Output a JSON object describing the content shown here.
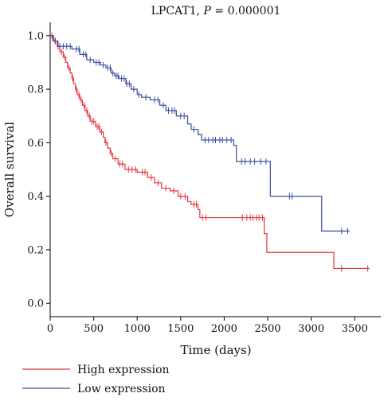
{
  "chart_data": {
    "type": "line",
    "title_prefix": "LPCAT1, ",
    "title_p": "P",
    "title_suffix": " = 0.000001",
    "xlabel": "Time (days)",
    "ylabel": "Overall survival",
    "xlim": [
      0,
      3800
    ],
    "ylim": [
      -0.05,
      1.05
    ],
    "x_ticks": [
      0,
      500,
      1000,
      1500,
      2000,
      2500,
      3000,
      3500
    ],
    "y_ticks": [
      0.0,
      0.2,
      0.4,
      0.6,
      0.8,
      1.0
    ],
    "y_tick_labels": [
      "0.0",
      "0.2",
      "0.4",
      "0.6",
      "0.8",
      "1.0"
    ],
    "legend_placement": "bottom-left",
    "grid": false,
    "series": [
      {
        "name": "High expression",
        "color": "#e8323c",
        "steps": [
          [
            0,
            1.0
          ],
          [
            40,
            0.98
          ],
          [
            80,
            0.96
          ],
          [
            110,
            0.94
          ],
          [
            150,
            0.92
          ],
          [
            180,
            0.9
          ],
          [
            200,
            0.88
          ],
          [
            230,
            0.86
          ],
          [
            250,
            0.84
          ],
          [
            270,
            0.82
          ],
          [
            290,
            0.8
          ],
          [
            310,
            0.78
          ],
          [
            340,
            0.76
          ],
          [
            370,
            0.74
          ],
          [
            400,
            0.72
          ],
          [
            430,
            0.7
          ],
          [
            460,
            0.68
          ],
          [
            520,
            0.66
          ],
          [
            570,
            0.64
          ],
          [
            610,
            0.62
          ],
          [
            630,
            0.6
          ],
          [
            660,
            0.58
          ],
          [
            690,
            0.56
          ],
          [
            720,
            0.54
          ],
          [
            780,
            0.52
          ],
          [
            860,
            0.5
          ],
          [
            1000,
            0.49
          ],
          [
            1120,
            0.47
          ],
          [
            1200,
            0.45
          ],
          [
            1280,
            0.43
          ],
          [
            1380,
            0.42
          ],
          [
            1470,
            0.4
          ],
          [
            1580,
            0.38
          ],
          [
            1620,
            0.37
          ],
          [
            1700,
            0.35
          ],
          [
            1720,
            0.32
          ],
          [
            2460,
            0.26
          ],
          [
            2490,
            0.19
          ],
          [
            3260,
            0.13
          ]
        ],
        "end_x": 3670,
        "censor_x": [
          20,
          55,
          90,
          130,
          165,
          215,
          260,
          300,
          330,
          355,
          390,
          420,
          450,
          480,
          500,
          540,
          560,
          590,
          640,
          700,
          750,
          800,
          830,
          900,
          940,
          980,
          1060,
          1090,
          1160,
          1240,
          1330,
          1420,
          1500,
          1550,
          1650,
          1680,
          1750,
          1790,
          2210,
          2260,
          2300,
          2330,
          2370,
          2400,
          2440,
          3350,
          3650
        ]
      },
      {
        "name": "Low expression",
        "color": "#3c4fa0",
        "steps": [
          [
            0,
            1.0
          ],
          [
            30,
            0.98
          ],
          [
            90,
            0.96
          ],
          [
            250,
            0.95
          ],
          [
            340,
            0.93
          ],
          [
            420,
            0.91
          ],
          [
            500,
            0.9
          ],
          [
            580,
            0.89
          ],
          [
            640,
            0.88
          ],
          [
            700,
            0.86
          ],
          [
            740,
            0.85
          ],
          [
            790,
            0.84
          ],
          [
            870,
            0.82
          ],
          [
            930,
            0.8
          ],
          [
            1000,
            0.78
          ],
          [
            1050,
            0.77
          ],
          [
            1150,
            0.76
          ],
          [
            1260,
            0.74
          ],
          [
            1330,
            0.72
          ],
          [
            1450,
            0.7
          ],
          [
            1580,
            0.67
          ],
          [
            1620,
            0.65
          ],
          [
            1700,
            0.63
          ],
          [
            1740,
            0.61
          ],
          [
            2110,
            0.59
          ],
          [
            2140,
            0.53
          ],
          [
            2530,
            0.4
          ],
          [
            3120,
            0.27
          ]
        ],
        "end_x": 3440,
        "censor_x": [
          60,
          110,
          150,
          190,
          230,
          300,
          330,
          380,
          410,
          460,
          530,
          560,
          610,
          660,
          690,
          720,
          760,
          780,
          820,
          850,
          880,
          910,
          960,
          1020,
          1100,
          1200,
          1240,
          1300,
          1360,
          1400,
          1430,
          1500,
          1540,
          1650,
          1780,
          1820,
          1870,
          1900,
          1950,
          1980,
          2030,
          2080,
          2200,
          2240,
          2300,
          2350,
          2420,
          2480,
          2750,
          2780,
          3350,
          3420
        ]
      }
    ]
  }
}
